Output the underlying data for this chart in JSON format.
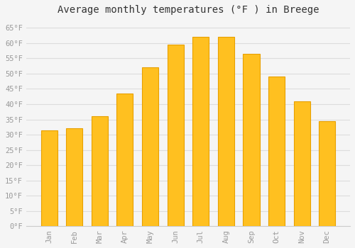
{
  "title": "Average monthly temperatures (°F ) in Breege",
  "months": [
    "Jan",
    "Feb",
    "Mar",
    "Apr",
    "May",
    "Jun",
    "Jul",
    "Aug",
    "Sep",
    "Oct",
    "Nov",
    "Dec"
  ],
  "values": [
    31.5,
    32,
    36,
    43.5,
    52,
    59.5,
    62,
    62,
    56.5,
    49,
    41,
    34.5
  ],
  "bar_color": "#FFC020",
  "bar_edge_color": "#E8A000",
  "background_color": "#F5F5F5",
  "grid_color": "#DDDDDD",
  "ylim": [
    0,
    68
  ],
  "yticks": [
    0,
    5,
    10,
    15,
    20,
    25,
    30,
    35,
    40,
    45,
    50,
    55,
    60,
    65
  ],
  "title_fontsize": 10,
  "tick_fontsize": 7.5,
  "tick_color": "#999999",
  "font_family": "monospace"
}
